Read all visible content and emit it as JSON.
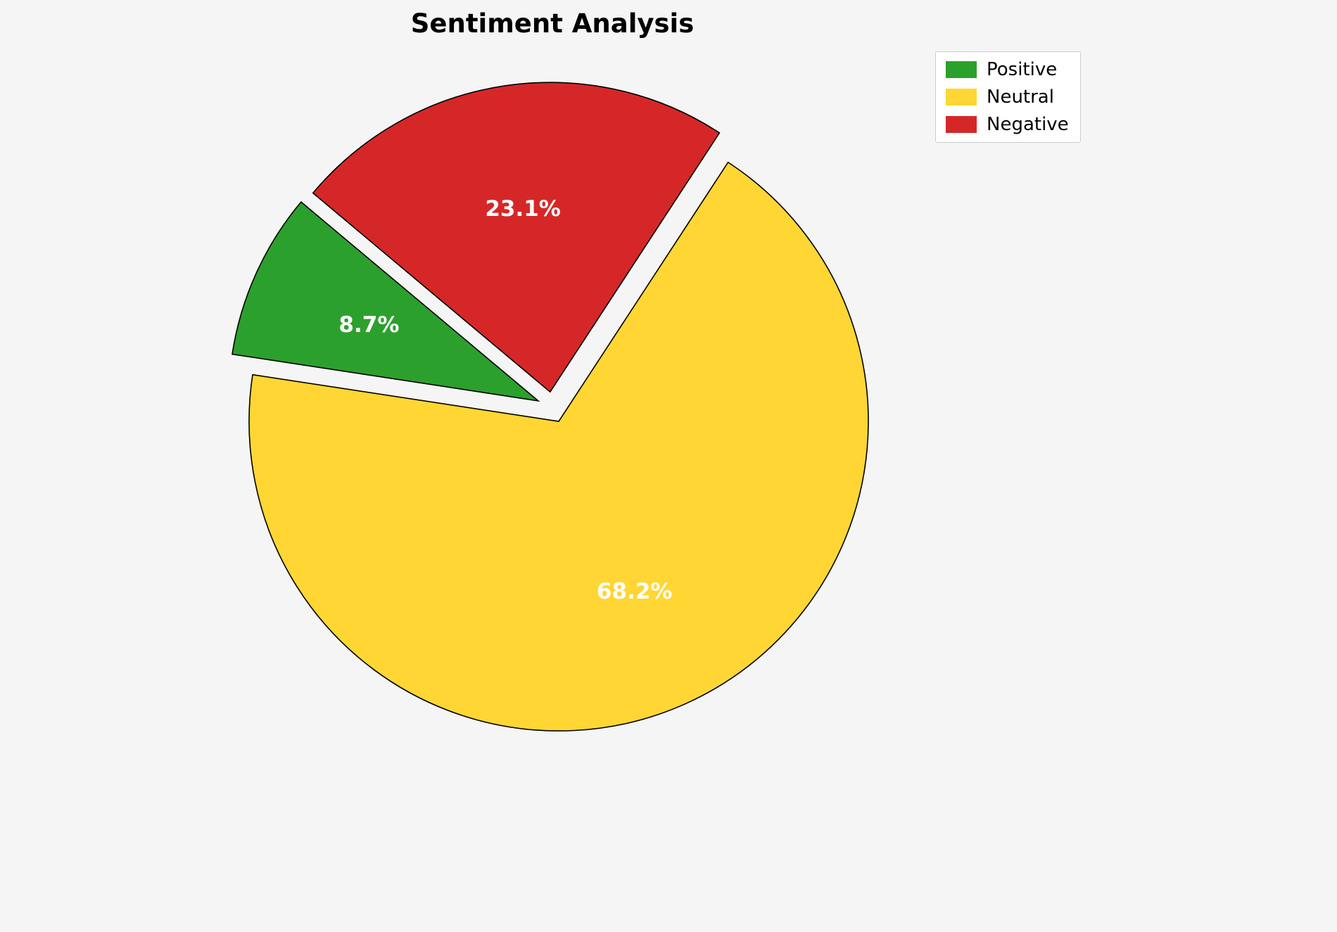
{
  "chart_data": {
    "type": "pie",
    "title": "Sentiment Analysis",
    "labels": [
      "Positive",
      "Neutral",
      "Negative"
    ],
    "values": [
      8.7,
      68.2,
      23.1
    ],
    "percent_labels": [
      "8.7%",
      "68.2%",
      "23.1%"
    ],
    "colors": [
      "#2ca02c",
      "#ffd633",
      "#d62728"
    ],
    "edge_color": "#000000",
    "start_angle": 140,
    "explode": [
      0.05,
      0.05,
      0.05
    ],
    "pct_distance": 0.6,
    "counterclockwise": true,
    "legend_position": "upper right",
    "background_color": "#f5f5f5"
  }
}
